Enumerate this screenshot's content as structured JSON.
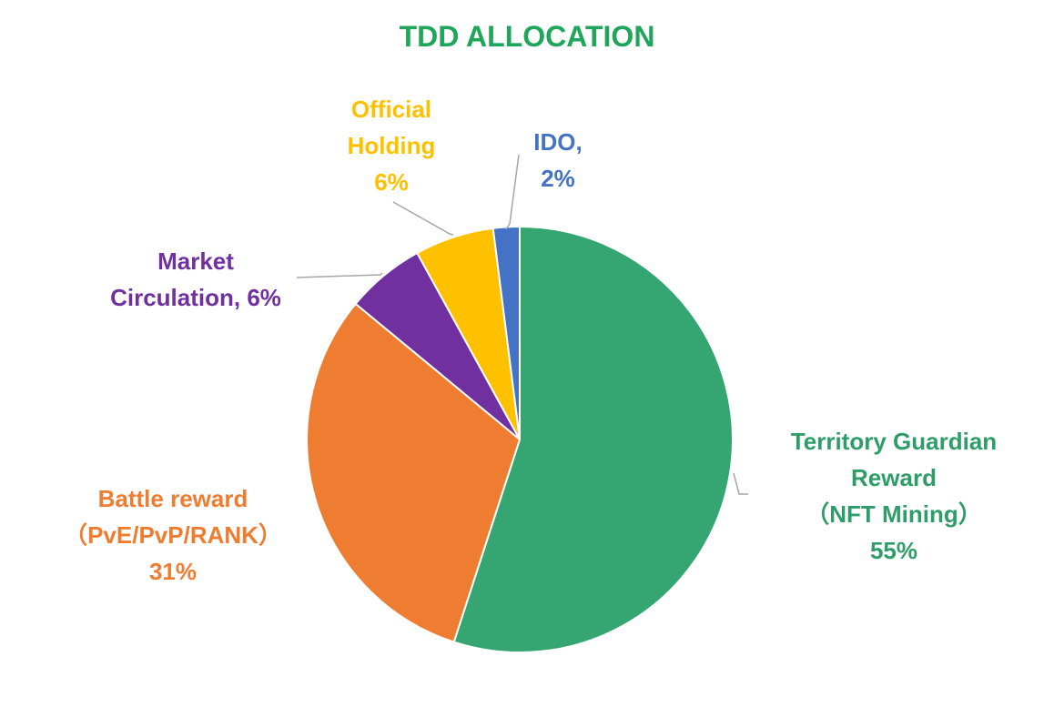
{
  "chart_data": {
    "type": "pie",
    "title": "TDD ALLOCATION",
    "title_color": "#1fa65a",
    "slices": [
      {
        "label_lines": [
          "Territory Guardian",
          "Reward",
          "（NFT Mining）",
          "55%"
        ],
        "value": 55,
        "color": "#35a571"
      },
      {
        "label_lines": [
          "Battle reward",
          "（PvE/PvP/RANK）",
          "31%"
        ],
        "value": 31,
        "color": "#ee7d31"
      },
      {
        "label_lines": [
          "Market",
          "Circulation, 6%"
        ],
        "value": 6,
        "color": "#7030a0"
      },
      {
        "label_lines": [
          "Official",
          "Holding",
          "6%"
        ],
        "value": 6,
        "color": "#ffc000"
      },
      {
        "label_lines": [
          "IDO,",
          "2%"
        ],
        "value": 2,
        "color": "#4472c4"
      }
    ],
    "start_angle_deg": 0,
    "direction": "clockwise",
    "legend": "none",
    "leader_line_color": "#a6a6a6"
  }
}
